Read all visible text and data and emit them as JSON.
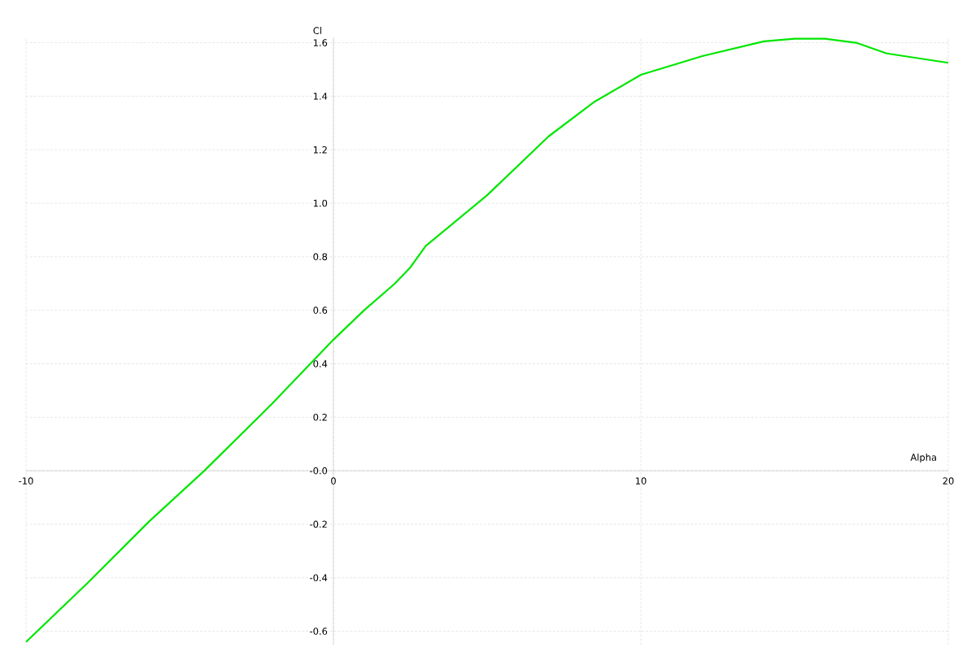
{
  "chart_data": {
    "type": "line",
    "xlabel": "Alpha",
    "ylabel": "Cl",
    "x": [
      -10,
      -8,
      -6,
      -4.2,
      -2,
      -1,
      0,
      1,
      2,
      2.5,
      3,
      5,
      7,
      8.5,
      10,
      12,
      14,
      15,
      16,
      17,
      18,
      20
    ],
    "series": [
      {
        "color": "#00e600",
        "values": [
          -0.64,
          -0.42,
          -0.19,
          0.0,
          0.25,
          0.37,
          0.49,
          0.6,
          0.7,
          0.76,
          0.84,
          1.03,
          1.25,
          1.38,
          1.48,
          1.55,
          1.605,
          1.615,
          1.615,
          1.6,
          1.56,
          1.525
        ]
      }
    ],
    "xlim": [
      -10,
      20
    ],
    "ylim": [
      -0.65,
      1.62
    ],
    "xticks": [
      -10,
      0,
      10,
      20
    ],
    "yticks": [
      -0.6,
      -0.4,
      -0.2,
      {
        "value": 0,
        "label": "-0.0"
      },
      0.2,
      0.4,
      0.6,
      0.8,
      {
        "value": 1,
        "label": "1.0"
      },
      1.2,
      1.4,
      1.6
    ],
    "grid": true,
    "marker": "none",
    "line_style": "solid"
  }
}
